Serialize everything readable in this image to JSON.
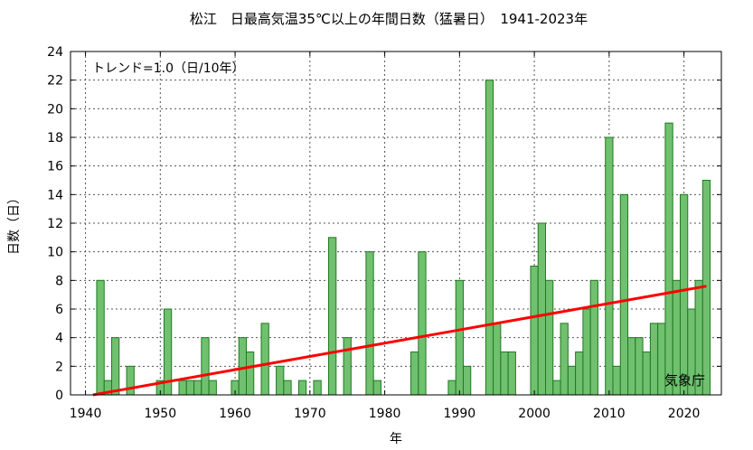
{
  "chart_data": {
    "type": "bar",
    "title": "松江　日最高気温35℃以上の年間日数（猛暑日）　1941-2023年",
    "xlabel": "年",
    "ylabel": "日数（日）",
    "trend_label": "トレンド=1.0（日/10年）",
    "source_label": "気象庁",
    "xlim": [
      1938,
      2025
    ],
    "ylim": [
      0,
      24
    ],
    "x_ticks": [
      1940,
      1950,
      1960,
      1970,
      1980,
      1990,
      2000,
      2010,
      2020
    ],
    "y_ticks": [
      0,
      2,
      4,
      6,
      8,
      10,
      12,
      14,
      16,
      18,
      20,
      22,
      24
    ],
    "grid": true,
    "bar_color": "#70c070",
    "bar_edge_color": "#1f7a1f",
    "trend_color": "#ff0000",
    "years": [
      1941,
      1942,
      1943,
      1944,
      1945,
      1946,
      1947,
      1948,
      1949,
      1950,
      1951,
      1952,
      1953,
      1954,
      1955,
      1956,
      1957,
      1958,
      1959,
      1960,
      1961,
      1962,
      1963,
      1964,
      1965,
      1966,
      1967,
      1968,
      1969,
      1970,
      1971,
      1972,
      1973,
      1974,
      1975,
      1976,
      1977,
      1978,
      1979,
      1980,
      1981,
      1982,
      1983,
      1984,
      1985,
      1986,
      1987,
      1988,
      1989,
      1990,
      1991,
      1992,
      1993,
      1994,
      1995,
      1996,
      1997,
      1998,
      1999,
      2000,
      2001,
      2002,
      2003,
      2004,
      2005,
      2006,
      2007,
      2008,
      2009,
      2010,
      2011,
      2012,
      2013,
      2014,
      2015,
      2016,
      2017,
      2018,
      2019,
      2020,
      2021,
      2022,
      2023
    ],
    "values": [
      0,
      8,
      1,
      4,
      0,
      2,
      0,
      0,
      0,
      1,
      6,
      0,
      1,
      1,
      1,
      4,
      1,
      0,
      0,
      1,
      4,
      3,
      0,
      5,
      0,
      2,
      1,
      0,
      1,
      0,
      1,
      0,
      11,
      0,
      4,
      0,
      0,
      10,
      1,
      0,
      0,
      0,
      0,
      3,
      10,
      0,
      0,
      0,
      1,
      8,
      2,
      0,
      0,
      22,
      5,
      3,
      3,
      0,
      0,
      9,
      12,
      8,
      1,
      5,
      2,
      3,
      6,
      8,
      0,
      18,
      2,
      14,
      4,
      4,
      3,
      5,
      5,
      19,
      8,
      14,
      6,
      8,
      15
    ],
    "trend": {
      "start_year": 1941,
      "start_value": 0.0,
      "end_year": 2023,
      "end_value": 7.6
    }
  }
}
